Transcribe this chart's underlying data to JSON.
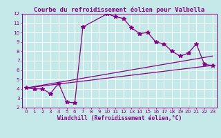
{
  "title": "Courbe du refroidissement éolien pour Valbella",
  "xlabel": "Windchill (Refroidissement éolien,°C)",
  "xlim": [
    -0.5,
    23.5
  ],
  "ylim": [
    2,
    12
  ],
  "xticks": [
    0,
    1,
    2,
    3,
    4,
    5,
    6,
    7,
    8,
    9,
    10,
    11,
    12,
    13,
    14,
    15,
    16,
    17,
    18,
    19,
    20,
    21,
    22,
    23
  ],
  "yticks": [
    2,
    3,
    4,
    5,
    6,
    7,
    8,
    9,
    10,
    11,
    12
  ],
  "bg_color": "#c5e8e8",
  "line_color": "#880088",
  "grid_color": "#ffffff",
  "line1_x": [
    0,
    1,
    2,
    3,
    4,
    5,
    6,
    7,
    10,
    11,
    12,
    13,
    14,
    15,
    16,
    17,
    18,
    19,
    20,
    21,
    22,
    23
  ],
  "line1_y": [
    4.1,
    4.0,
    4.0,
    3.5,
    4.6,
    2.6,
    2.5,
    10.6,
    12.0,
    11.7,
    11.5,
    10.5,
    9.9,
    10.0,
    9.0,
    8.8,
    8.0,
    7.5,
    7.8,
    8.8,
    6.6,
    6.5
  ],
  "line2_x": [
    0,
    23
  ],
  "line2_y": [
    4.1,
    6.5
  ],
  "line3_x": [
    0,
    23
  ],
  "line3_y": [
    4.1,
    7.5
  ],
  "marker": "*",
  "markersize": 4,
  "linewidth": 0.9,
  "title_fontsize": 6.5,
  "tick_fontsize": 5.2,
  "xlabel_fontsize": 5.8
}
